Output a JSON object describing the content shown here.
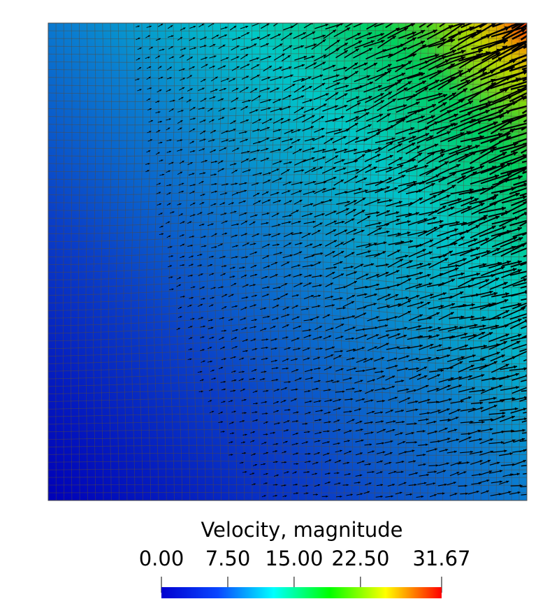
{
  "plot": {
    "field": "Velocity, magnitude",
    "colormap": [
      "#0000d0",
      "#0a46ff",
      "#00ffff",
      "#00ff00",
      "#ffff00",
      "#ff0000"
    ],
    "mesh_line_color": "#5a4a3a",
    "arrow_color": "#000000"
  },
  "legend": {
    "title": "Velocity, magnitude",
    "min": 0.0,
    "max": 31.67,
    "ticks": [
      {
        "value": 0.0,
        "label": "0.00"
      },
      {
        "value": 7.5,
        "label": "7.50"
      },
      {
        "value": 15.0,
        "label": "15.00"
      },
      {
        "value": 22.5,
        "label": "22.50"
      },
      {
        "value": 31.67,
        "label": "31.67"
      }
    ]
  }
}
